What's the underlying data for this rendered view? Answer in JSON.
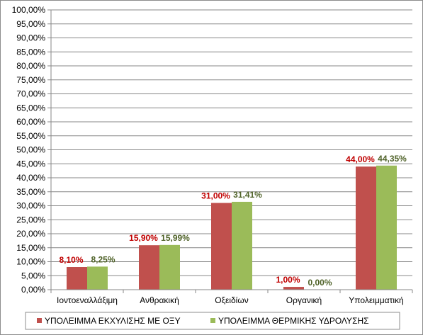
{
  "chart_data": {
    "type": "bar",
    "title": "",
    "xlabel": "",
    "ylabel": "",
    "ylim": [
      0,
      100
    ],
    "ytick_step": 5,
    "ytick_labels": [
      "0,00%",
      "5,00%",
      "10,00%",
      "15,00%",
      "20,00%",
      "25,00%",
      "30,00%",
      "35,00%",
      "40,00%",
      "45,00%",
      "50,00%",
      "55,00%",
      "60,00%",
      "65,00%",
      "70,00%",
      "75,00%",
      "80,00%",
      "85,00%",
      "90,00%",
      "95,00%",
      "100,00%"
    ],
    "grid": true,
    "legend_position": "bottom",
    "categories": [
      "Ιοντοεναλλάξιμη",
      "Ανθρακική",
      "Οξειδίων",
      "Οργανική",
      "Υπολειμματική"
    ],
    "series": [
      {
        "name": "ΥΠΟΛΕΙΜΜΑ ΕΚΧΥΛΙΣΗΣ ΜΕ ΟΞΥ",
        "color": "#c0504d",
        "label_color": "#c00000",
        "values": [
          8.1,
          15.9,
          31.0,
          1.0,
          44.0
        ],
        "labels": [
          "8,10%",
          "15,90%",
          "31,00%",
          "1,00%",
          "44,00%"
        ]
      },
      {
        "name": "ΥΠΟΛΕΙΜΜΑ ΘΕΡΜΙΚΗΣ ΥΔΡΟΛΥΣΗΣ",
        "color": "#9bbb59",
        "label_color": "#4f6228",
        "values": [
          8.25,
          15.99,
          31.41,
          0.0,
          44.35
        ],
        "labels": [
          "8,25%",
          "15,99%",
          "31,41%",
          "0,00%",
          "44,35%"
        ]
      }
    ]
  }
}
